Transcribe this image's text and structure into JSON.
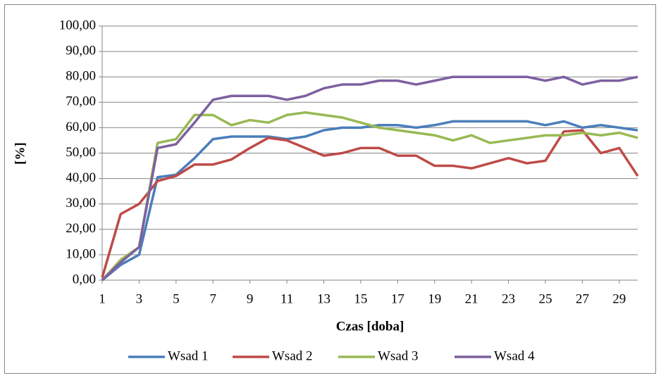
{
  "chart_data": {
    "type": "line",
    "x": [
      1,
      2,
      3,
      4,
      5,
      6,
      7,
      8,
      9,
      10,
      11,
      12,
      13,
      14,
      15,
      16,
      17,
      18,
      19,
      20,
      21,
      22,
      23,
      24,
      25,
      26,
      27,
      28,
      29,
      30
    ],
    "xlim": [
      1,
      30
    ],
    "xticks": [
      1,
      3,
      5,
      7,
      9,
      11,
      13,
      15,
      17,
      19,
      21,
      23,
      25,
      27,
      29
    ],
    "x_label": "Czas [doba]",
    "y_label": "[%]",
    "ylim": [
      0,
      100
    ],
    "yticks": [
      {
        "value": 0,
        "label": "0,00"
      },
      {
        "value": 10,
        "label": "10,00"
      },
      {
        "value": 20,
        "label": "20,00"
      },
      {
        "value": 30,
        "label": "30,00"
      },
      {
        "value": 40,
        "label": "40,00"
      },
      {
        "value": 50,
        "label": "50,00"
      },
      {
        "value": 60,
        "label": "60,00"
      },
      {
        "value": 70,
        "label": "70,00"
      },
      {
        "value": 80,
        "label": "80,00"
      },
      {
        "value": 90,
        "label": "90,00"
      },
      {
        "value": 100,
        "label": "100,00"
      }
    ],
    "grid": true,
    "legend": "bottom",
    "series": [
      {
        "name": "Wsad 1",
        "color": "#4a7ebb",
        "values": [
          0,
          6,
          10,
          40.5,
          41.5,
          48,
          55.5,
          56.5,
          56.5,
          56.5,
          55.5,
          56.5,
          59,
          60,
          60,
          61,
          61,
          60,
          61,
          62.5,
          62.5,
          62.5,
          62.5,
          62.5,
          61,
          62.5,
          60,
          61,
          60,
          59
        ]
      },
      {
        "name": "Wsad 2",
        "color": "#be4b48",
        "values": [
          1,
          26,
          30,
          39,
          41,
          45.5,
          45.5,
          47.5,
          52,
          56,
          55,
          52,
          49,
          50,
          52,
          52,
          49,
          49,
          45,
          45,
          44,
          46,
          48,
          46,
          47,
          58.5,
          59,
          50,
          52,
          41
        ]
      },
      {
        "name": "Wsad 3",
        "color": "#98b954",
        "values": [
          0,
          8,
          13,
          54,
          55.5,
          65,
          65,
          61,
          63,
          62,
          65,
          66,
          65,
          64,
          62,
          60,
          59,
          58,
          57,
          55,
          57,
          54,
          55,
          56,
          57,
          57,
          58,
          57,
          58,
          56
        ]
      },
      {
        "name": "Wsad 4",
        "color": "#7d60a0",
        "values": [
          0,
          7,
          13,
          52,
          53.5,
          62,
          71,
          72.5,
          72.5,
          72.5,
          71,
          72.5,
          75.5,
          77,
          77,
          78.5,
          78.5,
          77,
          78.5,
          80,
          80,
          80,
          80,
          80,
          78.5,
          80,
          77,
          78.5,
          78.5,
          80
        ]
      }
    ]
  }
}
